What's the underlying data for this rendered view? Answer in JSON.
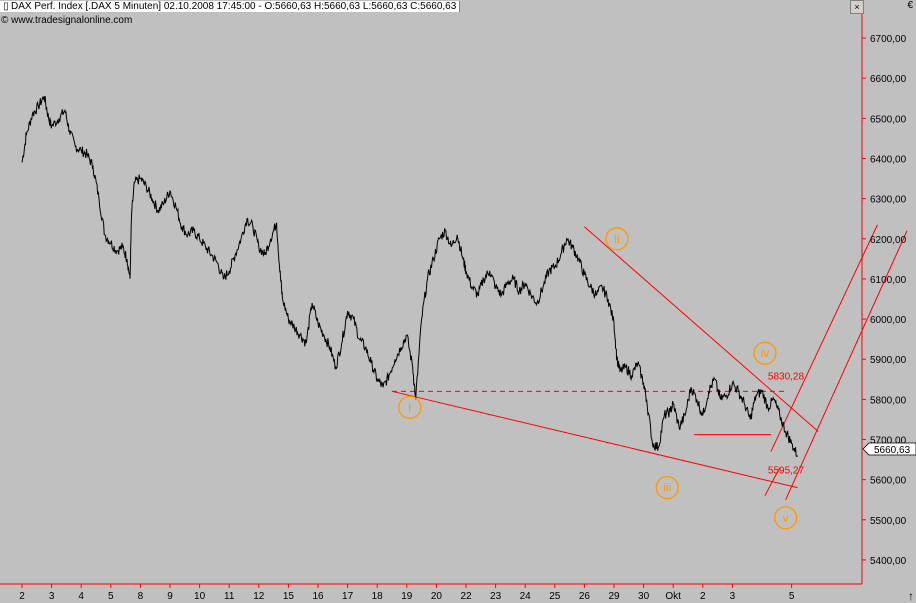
{
  "header": {
    "title": "DAX Perf. Index [.DAX  5 Minuten] 02.10.2008 17:45:00 - O:5660,63 H:5660,63 L:5660,63 C:5660,63",
    "source": "www.tradesignalonline.com",
    "currency": "€",
    "close_button": "×"
  },
  "colors": {
    "background": "#c0c0c0",
    "price_line": "#000000",
    "analysis": "#ff0000",
    "wave_labels": "#ff9900",
    "axis_lines": "#ff0000"
  },
  "chart_data": {
    "type": "line",
    "title": "DAX Perf. Index [.DAX  5 Minuten]",
    "ylim": [
      5340,
      6760
    ],
    "y_ticks": [
      5400,
      5500,
      5600,
      5700,
      5800,
      5900,
      6000,
      6100,
      6200,
      6300,
      6400,
      6500,
      6600,
      6700
    ],
    "y_tick_labels": [
      "5400,00",
      "5500,00",
      "5600,00",
      "5700,00",
      "5800,00",
      "5900,00",
      "6000,00",
      "6100,00",
      "6200,00",
      "6300,00",
      "6400,00",
      "6500,00",
      "6600,00",
      "6700,00"
    ],
    "x_tick_labels": [
      "2",
      "3",
      "4",
      "5",
      "8",
      "9",
      "10",
      "11",
      "12",
      "15",
      "16",
      "17",
      "18",
      "19",
      "20",
      "22",
      "23",
      "24",
      "25",
      "26",
      "29",
      "30",
      "Okt",
      "2",
      "3",
      "5"
    ],
    "session_count": 28,
    "session_tick_index": [
      0,
      1,
      2,
      3,
      4,
      5,
      6,
      7,
      8,
      9,
      10,
      11,
      12,
      13,
      14,
      15,
      16,
      17,
      18,
      19,
      20,
      21,
      22,
      23,
      24,
      26
    ],
    "series": [
      {
        "values": [
          [
            0,
            6390
          ],
          [
            0.15,
            6460
          ],
          [
            0.35,
            6510
          ],
          [
            0.55,
            6530
          ],
          [
            0.75,
            6555
          ],
          [
            0.9,
            6500
          ],
          [
            1.0,
            6480
          ],
          [
            1.25,
            6500
          ],
          [
            1.45,
            6520
          ],
          [
            1.6,
            6470
          ],
          [
            1.8,
            6430
          ],
          [
            2.0,
            6420
          ],
          [
            2.2,
            6410
          ],
          [
            2.4,
            6380
          ],
          [
            2.6,
            6300
          ],
          [
            2.8,
            6210
          ],
          [
            3.0,
            6190
          ],
          [
            3.2,
            6170
          ],
          [
            3.4,
            6180
          ],
          [
            3.55,
            6150
          ],
          [
            3.65,
            6100
          ],
          [
            3.7,
            6260
          ],
          [
            3.8,
            6340
          ],
          [
            4.0,
            6350
          ],
          [
            4.2,
            6330
          ],
          [
            4.4,
            6300
          ],
          [
            4.6,
            6270
          ],
          [
            4.8,
            6290
          ],
          [
            5.0,
            6320
          ],
          [
            5.2,
            6280
          ],
          [
            5.4,
            6230
          ],
          [
            5.6,
            6210
          ],
          [
            5.8,
            6220
          ],
          [
            6.0,
            6200
          ],
          [
            6.2,
            6180
          ],
          [
            6.4,
            6160
          ],
          [
            6.6,
            6140
          ],
          [
            6.8,
            6100
          ],
          [
            7.0,
            6120
          ],
          [
            7.2,
            6160
          ],
          [
            7.4,
            6200
          ],
          [
            7.6,
            6250
          ],
          [
            7.8,
            6230
          ],
          [
            8.0,
            6180
          ],
          [
            8.2,
            6160
          ],
          [
            8.4,
            6200
          ],
          [
            8.6,
            6240
          ],
          [
            8.7,
            6130
          ],
          [
            8.8,
            6050
          ],
          [
            9.0,
            6000
          ],
          [
            9.2,
            5980
          ],
          [
            9.4,
            5960
          ],
          [
            9.6,
            5940
          ],
          [
            9.8,
            6040
          ],
          [
            10.0,
            5990
          ],
          [
            10.2,
            5960
          ],
          [
            10.4,
            5930
          ],
          [
            10.6,
            5880
          ],
          [
            10.8,
            5940
          ],
          [
            11.0,
            6020
          ],
          [
            11.2,
            6000
          ],
          [
            11.4,
            5950
          ],
          [
            11.6,
            5930
          ],
          [
            11.8,
            5890
          ],
          [
            12.0,
            5850
          ],
          [
            12.2,
            5830
          ],
          [
            12.4,
            5860
          ],
          [
            12.6,
            5900
          ],
          [
            12.8,
            5930
          ],
          [
            13.0,
            5960
          ],
          [
            13.2,
            5880
          ],
          [
            13.3,
            5800
          ],
          [
            13.5,
            6000
          ],
          [
            13.7,
            6100
          ],
          [
            13.9,
            6150
          ],
          [
            14.1,
            6200
          ],
          [
            14.3,
            6220
          ],
          [
            14.5,
            6180
          ],
          [
            14.7,
            6210
          ],
          [
            14.9,
            6150
          ],
          [
            15.0,
            6120
          ],
          [
            15.2,
            6080
          ],
          [
            15.4,
            6060
          ],
          [
            15.6,
            6100
          ],
          [
            15.8,
            6120
          ],
          [
            16.0,
            6080
          ],
          [
            16.2,
            6060
          ],
          [
            16.4,
            6090
          ],
          [
            16.6,
            6100
          ],
          [
            16.8,
            6070
          ],
          [
            17.0,
            6090
          ],
          [
            17.2,
            6060
          ],
          [
            17.4,
            6040
          ],
          [
            17.6,
            6080
          ],
          [
            17.8,
            6120
          ],
          [
            18.0,
            6130
          ],
          [
            18.2,
            6160
          ],
          [
            18.4,
            6200
          ],
          [
            18.6,
            6180
          ],
          [
            18.8,
            6150
          ],
          [
            19.0,
            6110
          ],
          [
            19.2,
            6080
          ],
          [
            19.4,
            6060
          ],
          [
            19.6,
            6080
          ],
          [
            19.8,
            6050
          ],
          [
            20.0,
            5990
          ],
          [
            20.1,
            5900
          ],
          [
            20.2,
            5870
          ],
          [
            20.4,
            5880
          ],
          [
            20.6,
            5860
          ],
          [
            20.8,
            5890
          ],
          [
            21.0,
            5840
          ],
          [
            21.1,
            5800
          ],
          [
            21.3,
            5690
          ],
          [
            21.5,
            5680
          ],
          [
            21.7,
            5760
          ],
          [
            21.9,
            5770
          ],
          [
            22.0,
            5790
          ],
          [
            22.2,
            5730
          ],
          [
            22.4,
            5760
          ],
          [
            22.6,
            5830
          ],
          [
            22.8,
            5800
          ],
          [
            23.0,
            5760
          ],
          [
            23.2,
            5820
          ],
          [
            23.4,
            5850
          ],
          [
            23.6,
            5800
          ],
          [
            23.8,
            5810
          ],
          [
            24.0,
            5840
          ],
          [
            24.2,
            5820
          ],
          [
            24.4,
            5790
          ],
          [
            24.6,
            5750
          ],
          [
            24.8,
            5810
          ],
          [
            25.0,
            5820
          ],
          [
            25.2,
            5780
          ],
          [
            25.4,
            5800
          ],
          [
            25.6,
            5760
          ],
          [
            25.8,
            5720
          ],
          [
            26.0,
            5690
          ],
          [
            26.2,
            5660
          ]
        ]
      }
    ],
    "annotations": {
      "levels": [
        {
          "text": "5830,28",
          "value": 5830.28
        },
        {
          "text": "5595,27",
          "value": 5595.27
        }
      ],
      "waves": [
        {
          "text": "i",
          "x": 13.1,
          "y": 5780
        },
        {
          "text": "ii",
          "x": 20.1,
          "y": 6200
        },
        {
          "text": "iii",
          "x": 21.8,
          "y": 5580
        },
        {
          "text": "iv",
          "x": 25.1,
          "y": 5915
        },
        {
          "text": "v",
          "x": 25.8,
          "y": 5505
        }
      ],
      "lines": [
        {
          "style": "dashed",
          "from": [
            12.5,
            5820
          ],
          "to": [
            25.8,
            5820
          ]
        },
        {
          "style": "solid",
          "from": [
            12.5,
            5820
          ],
          "to": [
            26.2,
            5580
          ]
        },
        {
          "style": "solid",
          "from": [
            19.0,
            6230
          ],
          "to": [
            26.9,
            5720
          ]
        },
        {
          "style": "solid",
          "from": [
            22.7,
            5712
          ],
          "to": [
            25.3,
            5712
          ]
        },
        {
          "style": "solid",
          "from": [
            25.1,
            5560
          ],
          "to": [
            25.6,
            5630
          ]
        },
        {
          "style": "solid",
          "from": [
            25.3,
            5670
          ],
          "to": [
            28.9,
            6235
          ]
        },
        {
          "style": "solid",
          "from": [
            25.8,
            5550
          ],
          "to": [
            29.9,
            6220
          ]
        }
      ]
    }
  },
  "axis": {
    "last_value_label": "5660,63"
  }
}
